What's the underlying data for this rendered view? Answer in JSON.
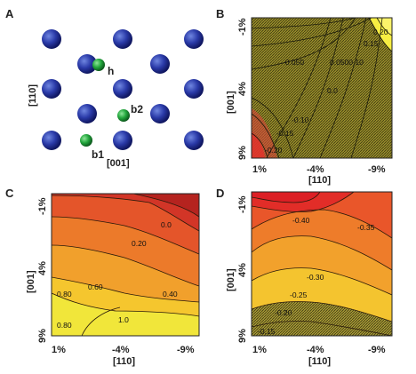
{
  "figure": {
    "panel_labels": [
      "A",
      "B",
      "C",
      "D"
    ]
  },
  "panel_a": {
    "site_labels": {
      "h": "h",
      "b1": "b1",
      "b2": "b2"
    },
    "axis_vertical": "[110]",
    "axis_horizontal": "[001]",
    "colors": {
      "host_atom": "#1f2f8f",
      "site_atom": "#1f9a3c"
    }
  },
  "chart_data": [
    {
      "panel": "B",
      "type": "heatmap",
      "x_ticks": [
        "1%",
        "-4%",
        "-9%"
      ],
      "y_ticks": [
        "-1%",
        "4%",
        "9%"
      ],
      "xlabel": "[110]",
      "ylabel": "[001]",
      "x_range": [
        1,
        -9
      ],
      "y_range": [
        -1,
        9
      ],
      "contour_labels": [
        "-0.050",
        "0.0500.10",
        "0.0",
        "-0.10",
        "-0.15",
        "-0.20",
        "0.15",
        "0.20"
      ],
      "colormap": [
        "#d8242a",
        "#e6622a",
        "#f08a2a",
        "#f7b52c",
        "#fbe23a"
      ]
    },
    {
      "panel": "C",
      "type": "heatmap",
      "x_ticks": [
        "1%",
        "-4%",
        "-9%"
      ],
      "y_ticks": [
        "-1%",
        "4%",
        "9%"
      ],
      "xlabel": "[110]",
      "ylabel": "[001]",
      "x_range": [
        1,
        -9
      ],
      "y_range": [
        -1,
        9
      ],
      "contour_labels": [
        "0.0",
        "0.20",
        "0.40",
        "0.60",
        "0.80",
        "0.80",
        "1.0"
      ],
      "colormap": [
        "#d8242a",
        "#e6622a",
        "#f08a2a",
        "#f7b52c",
        "#fbe23a"
      ]
    },
    {
      "panel": "D",
      "type": "heatmap",
      "x_ticks": [
        "1%",
        "-4%",
        "-9%"
      ],
      "y_ticks": [
        "-1%",
        "4%",
        "9%"
      ],
      "xlabel": "[110]",
      "ylabel": "[001]",
      "x_range": [
        1,
        -9
      ],
      "y_range": [
        -1,
        9
      ],
      "contour_labels": [
        "-0.40",
        "-0.35",
        "-0.30",
        "-0.25",
        "-0.20",
        "-0.15"
      ],
      "colormap": [
        "#d8242a",
        "#e6622a",
        "#f08a2a",
        "#f7b52c",
        "#fbe23a"
      ]
    }
  ]
}
